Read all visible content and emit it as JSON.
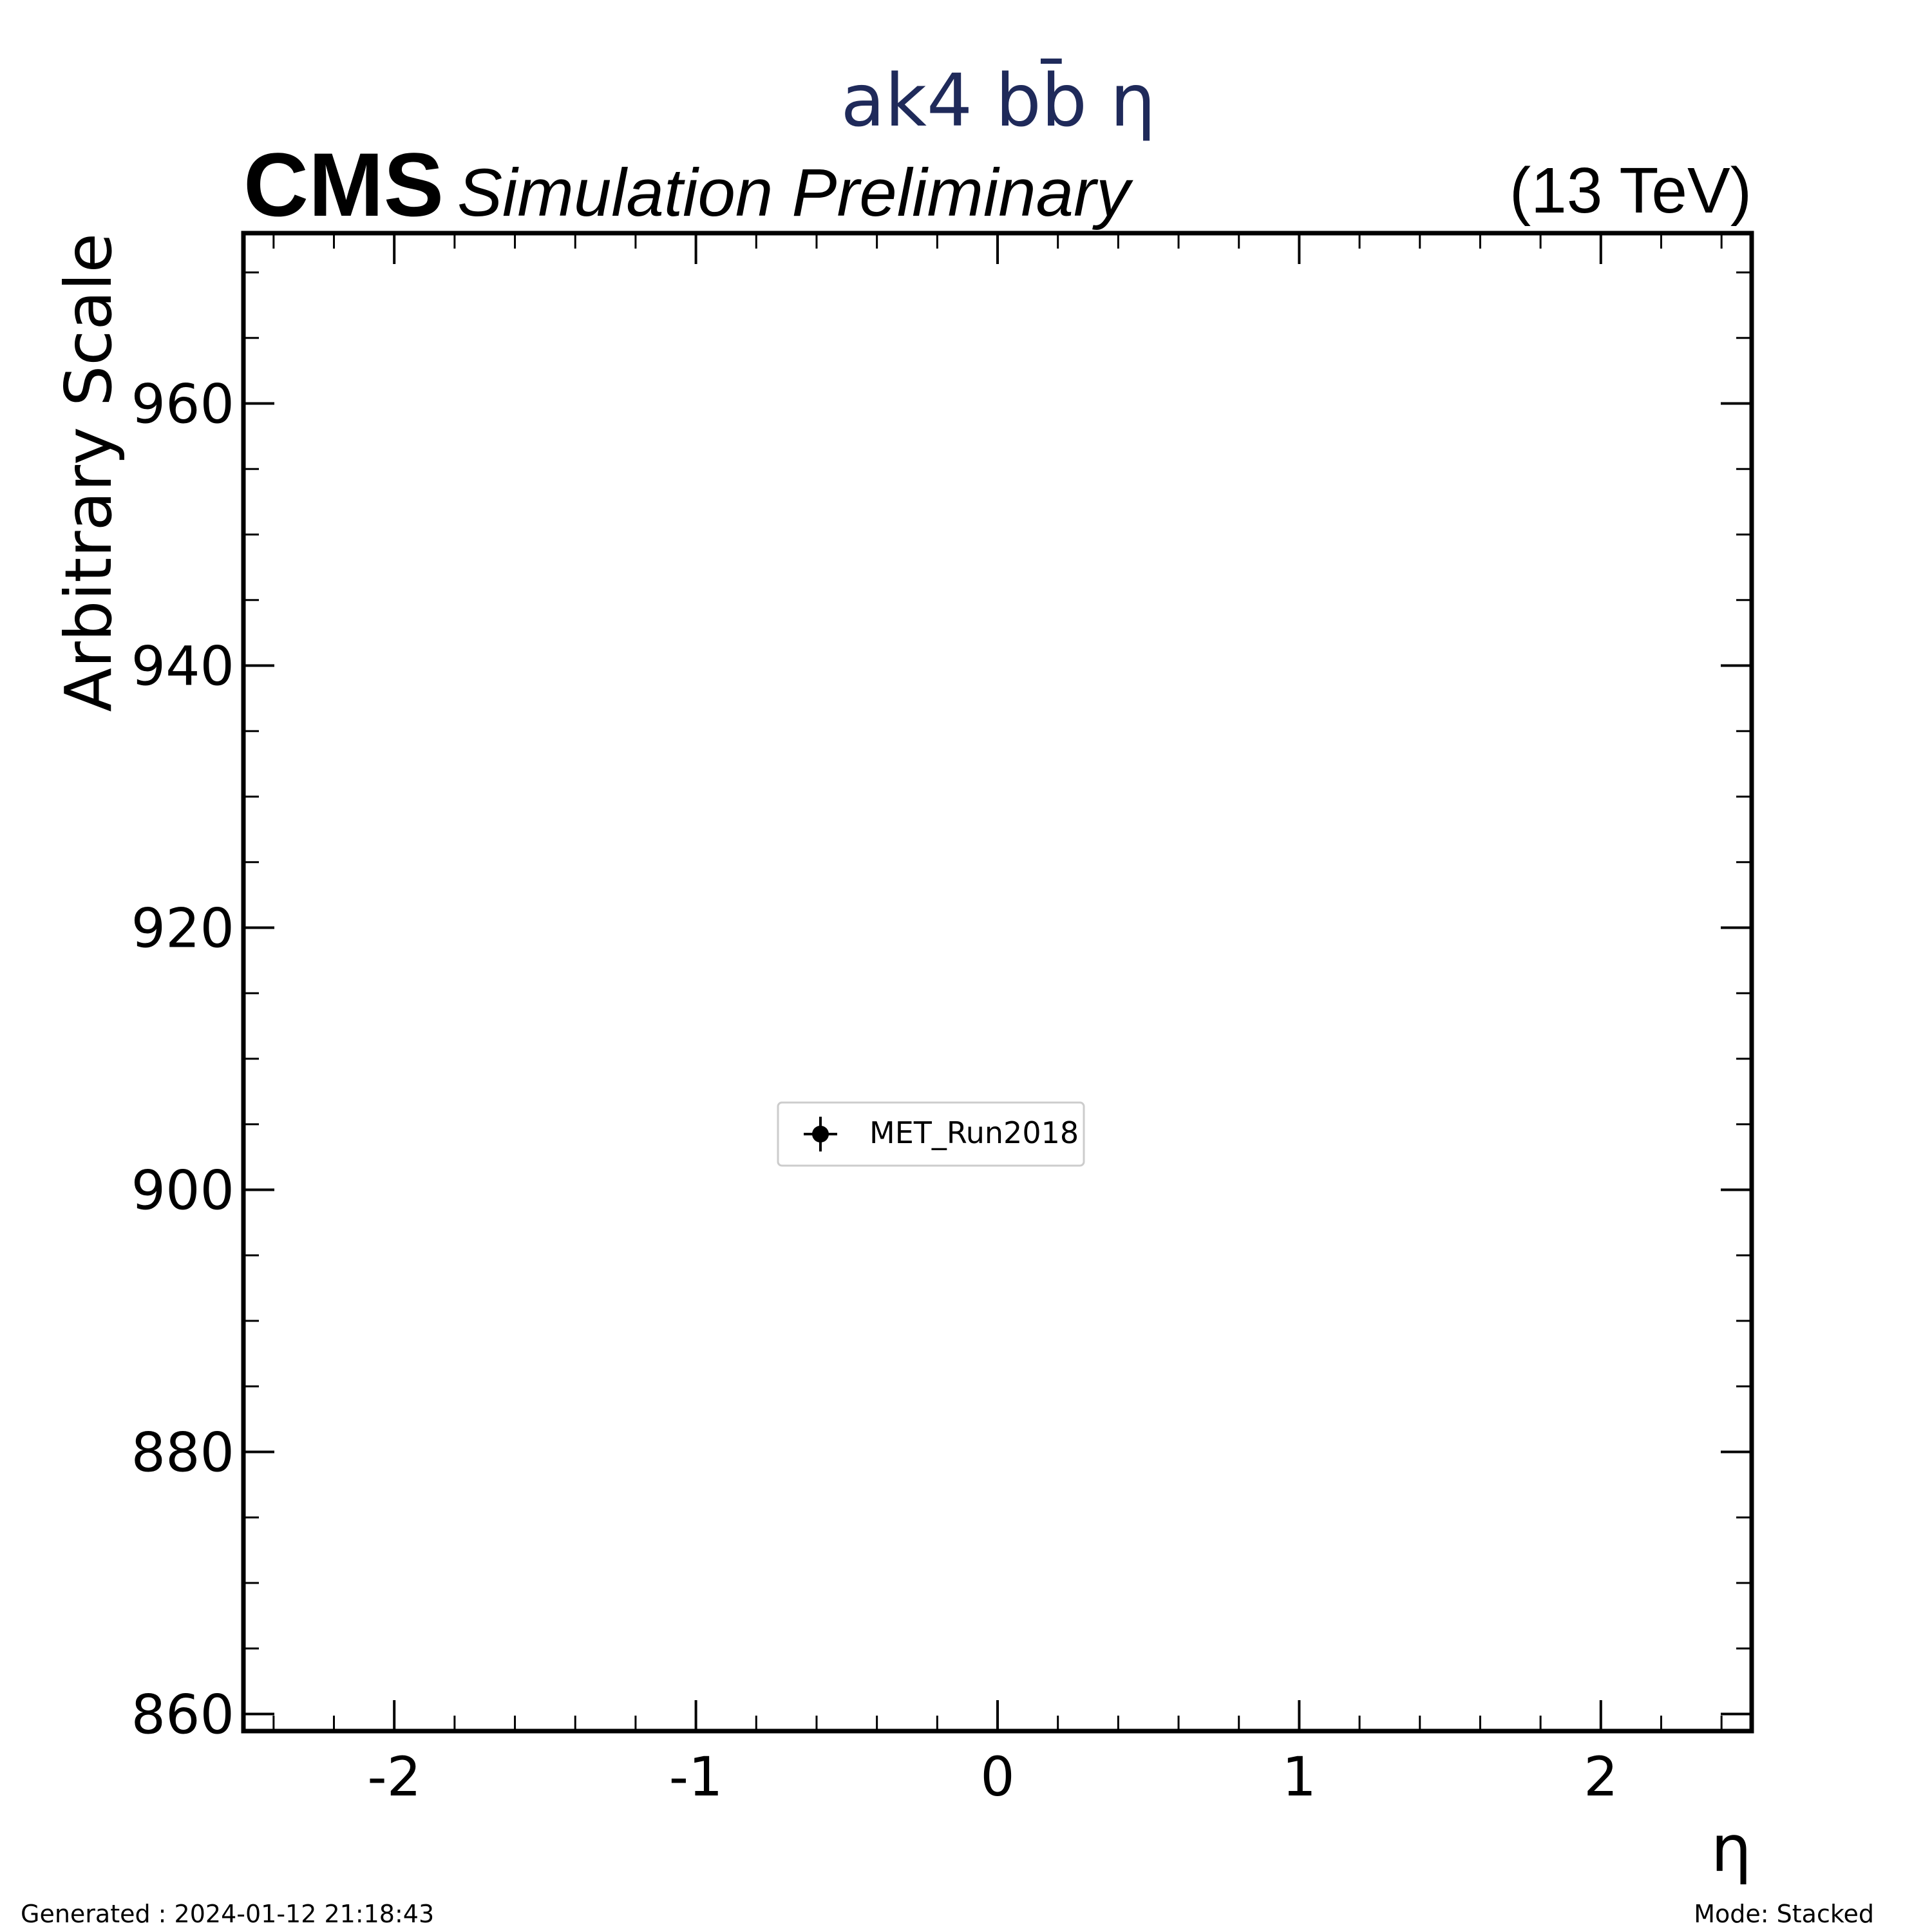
{
  "chart_data": {
    "type": "scatter",
    "title": "ak4 bb̄ η",
    "experiment": "CMS",
    "status": "Simulation Preliminary",
    "energy": "(13 TeV)",
    "xlabel": "η",
    "ylabel": "Arbitrary Scale",
    "xlim": [
      -2.5,
      2.5
    ],
    "ylim": [
      858.7,
      973.0
    ],
    "x_ticks": [
      -2,
      -1,
      0,
      1,
      2
    ],
    "x_tick_labels": [
      "-2",
      "-1",
      "0",
      "1",
      "2"
    ],
    "y_ticks": [
      860,
      880,
      900,
      920,
      940,
      960
    ],
    "y_tick_labels": [
      "860",
      "880",
      "900",
      "920",
      "940",
      "960"
    ],
    "x_minor_step": 0.2,
    "y_minor_step": 5,
    "grid": false,
    "legend_position": "center",
    "series": [
      {
        "name": "MET_Run2018",
        "marker": "circle-with-errorbar",
        "color": "#000000",
        "points": []
      }
    ],
    "colors": {
      "title": "#1f2a5a",
      "axis": "#000000"
    }
  },
  "footer": {
    "generated": "Generated : 2024-01-12 21:18:43",
    "mode": "Mode: Stacked"
  }
}
